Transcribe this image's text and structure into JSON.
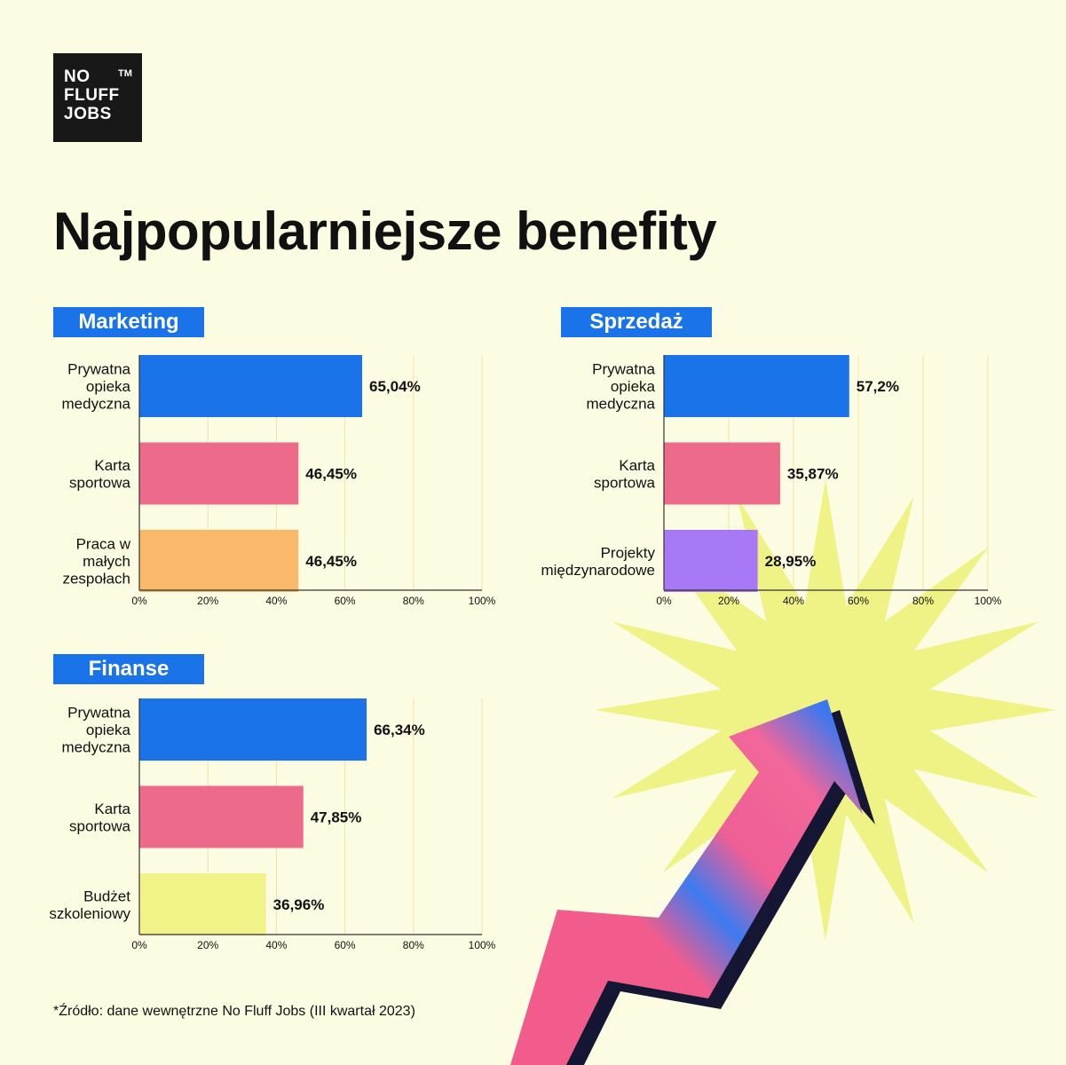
{
  "logo": {
    "lines": [
      "NO",
      "FLUFF",
      "JOBS"
    ],
    "trademark": "TM"
  },
  "title": "Najpopularniejsze benefity",
  "source": "*Źródło: dane wewnętrzne No Fluff Jobs (III kwartał 2023)",
  "colors": {
    "background": "#FCFCE3",
    "accent_blue": "#1A73E8",
    "gridline": "#F2E3A6",
    "starburst": "#EFF284"
  },
  "chart_data": [
    {
      "type": "bar",
      "orientation": "horizontal",
      "title": "Marketing",
      "categories": [
        [
          "Prywatna",
          "opieka",
          "medyczna"
        ],
        [
          "Karta",
          "sportowa"
        ],
        [
          "Praca w",
          "małych",
          "zespołach"
        ]
      ],
      "values": [
        65.04,
        46.45,
        46.45
      ],
      "value_labels": [
        "65,04%",
        "46,45%",
        "46,45%"
      ],
      "colors": [
        "#1A73E8",
        "#EE6A8A",
        "#F9B96A"
      ],
      "xlim": [
        0,
        100
      ],
      "ticks": [
        "0%",
        "20%",
        "40%",
        "60%",
        "80%",
        "100%"
      ]
    },
    {
      "type": "bar",
      "orientation": "horizontal",
      "title": "Sprzedaż",
      "categories": [
        [
          "Prywatna",
          "opieka",
          "medyczna"
        ],
        [
          "Karta",
          "sportowa"
        ],
        [
          "Projekty",
          "międzynarodowe"
        ]
      ],
      "values": [
        57.2,
        35.87,
        28.95
      ],
      "value_labels": [
        "57,2%",
        "35,87%",
        "28,95%"
      ],
      "colors": [
        "#1A73E8",
        "#EE6A8A",
        "#A879F6"
      ],
      "xlim": [
        0,
        100
      ],
      "ticks": [
        "0%",
        "20%",
        "40%",
        "60%",
        "80%",
        "100%"
      ]
    },
    {
      "type": "bar",
      "orientation": "horizontal",
      "title": "Finanse",
      "categories": [
        [
          "Prywatna",
          "opieka",
          "medyczna"
        ],
        [
          "Karta",
          "sportowa"
        ],
        [
          "Budżet",
          "szkoleniowy"
        ]
      ],
      "values": [
        66.34,
        47.85,
        36.96
      ],
      "value_labels": [
        "66,34%",
        "47,85%",
        "36,96%"
      ],
      "colors": [
        "#1A73E8",
        "#EE6A8A",
        "#F1F287"
      ],
      "xlim": [
        0,
        100
      ],
      "ticks": [
        "0%",
        "20%",
        "40%",
        "60%",
        "80%",
        "100%"
      ]
    }
  ]
}
